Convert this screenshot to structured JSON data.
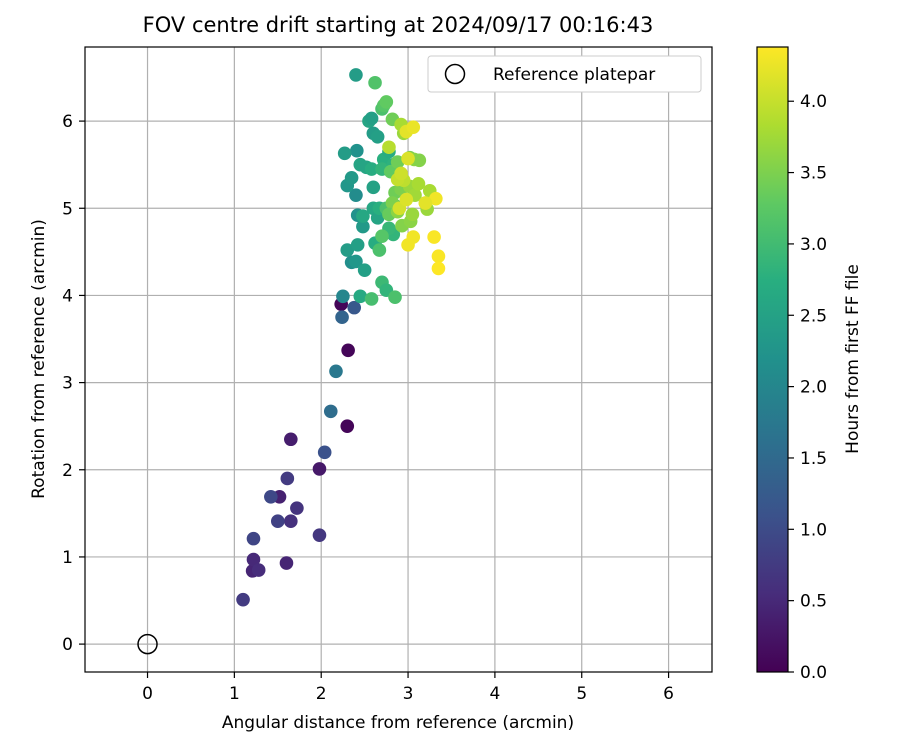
{
  "chart_data": {
    "type": "scatter",
    "title": "FOV centre drift starting at 2024/09/17 00:16:43",
    "xlabel": "Angular distance from reference (arcmin)",
    "ylabel": "Rotation from reference (arcmin)",
    "xlim": [
      -0.72,
      6.5
    ],
    "ylim": [
      -0.32,
      6.85
    ],
    "xticks": [
      0,
      1,
      2,
      3,
      4,
      5,
      6
    ],
    "yticks": [
      0,
      1,
      2,
      3,
      4,
      5,
      6
    ],
    "grid": true,
    "legend": {
      "placement": "top-right",
      "entries": [
        "Reference platepar"
      ]
    },
    "reference": {
      "x": 0,
      "y": 0,
      "label": "Reference platepar"
    },
    "colorbar": {
      "label": "Hours from first FF file",
      "colormap": "viridis",
      "range": [
        0.0,
        4.38
      ],
      "ticks": [
        "0.0",
        "0.5",
        "1.0",
        "1.5",
        "2.0",
        "2.5",
        "3.0",
        "3.5",
        "4.0"
      ],
      "tick_values": [
        0.0,
        0.5,
        1.0,
        1.5,
        2.0,
        2.5,
        3.0,
        3.5,
        4.0
      ]
    },
    "points": [
      {
        "x": 2.23,
        "y": 3.9,
        "t": 0.05
      },
      {
        "x": 2.31,
        "y": 3.37,
        "t": 0.05
      },
      {
        "x": 2.3,
        "y": 2.5,
        "t": 0.05
      },
      {
        "x": 1.65,
        "y": 2.35,
        "t": 0.35
      },
      {
        "x": 1.98,
        "y": 2.01,
        "t": 0.3
      },
      {
        "x": 1.52,
        "y": 1.69,
        "t": 0.4
      },
      {
        "x": 1.6,
        "y": 0.93,
        "t": 0.45
      },
      {
        "x": 1.21,
        "y": 0.84,
        "t": 0.45
      },
      {
        "x": 1.22,
        "y": 0.97,
        "t": 0.5
      },
      {
        "x": 1.28,
        "y": 0.85,
        "t": 0.55
      },
      {
        "x": 1.65,
        "y": 1.41,
        "t": 0.6
      },
      {
        "x": 1.72,
        "y": 1.56,
        "t": 0.65
      },
      {
        "x": 1.98,
        "y": 1.25,
        "t": 0.7
      },
      {
        "x": 1.61,
        "y": 1.9,
        "t": 0.75
      },
      {
        "x": 1.1,
        "y": 0.51,
        "t": 0.75
      },
      {
        "x": 1.5,
        "y": 1.41,
        "t": 0.85
      },
      {
        "x": 1.22,
        "y": 1.21,
        "t": 0.9
      },
      {
        "x": 1.42,
        "y": 1.69,
        "t": 0.95
      },
      {
        "x": 2.04,
        "y": 2.2,
        "t": 1.1
      },
      {
        "x": 2.38,
        "y": 3.86,
        "t": 1.2
      },
      {
        "x": 2.24,
        "y": 3.75,
        "t": 1.4
      },
      {
        "x": 2.11,
        "y": 2.67,
        "t": 1.55
      },
      {
        "x": 2.17,
        "y": 3.13,
        "t": 1.75
      },
      {
        "x": 2.25,
        "y": 3.99,
        "t": 2.0
      },
      {
        "x": 2.4,
        "y": 5.15,
        "t": 2.1
      },
      {
        "x": 2.41,
        "y": 5.66,
        "t": 2.2
      },
      {
        "x": 2.4,
        "y": 6.53,
        "t": 2.4
      },
      {
        "x": 2.42,
        "y": 4.92,
        "t": 2.2
      },
      {
        "x": 2.35,
        "y": 4.38,
        "t": 2.15
      },
      {
        "x": 2.4,
        "y": 4.39,
        "t": 2.3
      },
      {
        "x": 2.3,
        "y": 5.26,
        "t": 2.3
      },
      {
        "x": 2.35,
        "y": 5.35,
        "t": 2.35
      },
      {
        "x": 2.27,
        "y": 5.63,
        "t": 2.4
      },
      {
        "x": 2.3,
        "y": 4.52,
        "t": 2.4
      },
      {
        "x": 2.42,
        "y": 4.58,
        "t": 2.45
      },
      {
        "x": 2.48,
        "y": 4.79,
        "t": 2.35
      },
      {
        "x": 2.5,
        "y": 4.29,
        "t": 2.45
      },
      {
        "x": 2.45,
        "y": 5.5,
        "t": 2.55
      },
      {
        "x": 2.52,
        "y": 5.47,
        "t": 2.55
      },
      {
        "x": 2.55,
        "y": 6.0,
        "t": 2.55
      },
      {
        "x": 2.58,
        "y": 6.03,
        "t": 2.45
      },
      {
        "x": 2.6,
        "y": 5.86,
        "t": 2.4
      },
      {
        "x": 2.65,
        "y": 5.82,
        "t": 2.45
      },
      {
        "x": 2.6,
        "y": 5.24,
        "t": 2.5
      },
      {
        "x": 2.6,
        "y": 5.0,
        "t": 2.6
      },
      {
        "x": 2.65,
        "y": 4.89,
        "t": 2.55
      },
      {
        "x": 2.48,
        "y": 4.91,
        "t": 2.6
      },
      {
        "x": 2.62,
        "y": 4.6,
        "t": 2.7
      },
      {
        "x": 2.45,
        "y": 3.99,
        "t": 2.65
      },
      {
        "x": 2.58,
        "y": 5.45,
        "t": 2.7
      },
      {
        "x": 2.67,
        "y": 5.0,
        "t": 2.75
      },
      {
        "x": 2.72,
        "y": 5.56,
        "t": 2.75
      },
      {
        "x": 2.7,
        "y": 5.45,
        "t": 2.85
      },
      {
        "x": 2.78,
        "y": 5.65,
        "t": 2.7
      },
      {
        "x": 2.83,
        "y": 5.5,
        "t": 2.8
      },
      {
        "x": 2.83,
        "y": 4.7,
        "t": 2.85
      },
      {
        "x": 2.78,
        "y": 4.77,
        "t": 2.9
      },
      {
        "x": 2.7,
        "y": 4.15,
        "t": 2.95
      },
      {
        "x": 2.75,
        "y": 4.06,
        "t": 2.85
      },
      {
        "x": 2.85,
        "y": 5.03,
        "t": 2.9
      },
      {
        "x": 2.58,
        "y": 3.96,
        "t": 3.05
      },
      {
        "x": 2.85,
        "y": 3.98,
        "t": 3.1
      },
      {
        "x": 2.67,
        "y": 4.52,
        "t": 3.1
      },
      {
        "x": 2.7,
        "y": 4.68,
        "t": 3.2
      },
      {
        "x": 2.75,
        "y": 5.0,
        "t": 3.1
      },
      {
        "x": 2.62,
        "y": 6.44,
        "t": 3.15
      },
      {
        "x": 2.7,
        "y": 6.14,
        "t": 3.1
      },
      {
        "x": 2.72,
        "y": 6.18,
        "t": 3.2
      },
      {
        "x": 2.75,
        "y": 6.22,
        "t": 3.3
      },
      {
        "x": 2.82,
        "y": 6.02,
        "t": 3.4
      },
      {
        "x": 2.8,
        "y": 5.42,
        "t": 3.3
      },
      {
        "x": 2.88,
        "y": 5.53,
        "t": 3.4
      },
      {
        "x": 2.85,
        "y": 5.18,
        "t": 3.4
      },
      {
        "x": 2.82,
        "y": 5.06,
        "t": 3.5
      },
      {
        "x": 2.92,
        "y": 5.22,
        "t": 3.5
      },
      {
        "x": 2.78,
        "y": 4.93,
        "t": 3.35
      },
      {
        "x": 2.88,
        "y": 4.96,
        "t": 3.6
      },
      {
        "x": 2.93,
        "y": 4.8,
        "t": 3.55
      },
      {
        "x": 3.03,
        "y": 4.85,
        "t": 3.6
      },
      {
        "x": 3.05,
        "y": 4.93,
        "t": 3.7
      },
      {
        "x": 3.02,
        "y": 5.58,
        "t": 3.5
      },
      {
        "x": 3.07,
        "y": 5.56,
        "t": 3.6
      },
      {
        "x": 3.13,
        "y": 5.55,
        "t": 3.55
      },
      {
        "x": 3.02,
        "y": 5.25,
        "t": 3.7
      },
      {
        "x": 3.08,
        "y": 5.15,
        "t": 3.75
      },
      {
        "x": 3.12,
        "y": 5.28,
        "t": 3.8
      },
      {
        "x": 3.22,
        "y": 4.99,
        "t": 3.7
      },
      {
        "x": 3.25,
        "y": 5.2,
        "t": 3.8
      },
      {
        "x": 3.2,
        "y": 5.06,
        "t": 3.9
      },
      {
        "x": 2.95,
        "y": 5.86,
        "t": 3.7
      },
      {
        "x": 2.92,
        "y": 5.96,
        "t": 3.8
      },
      {
        "x": 2.78,
        "y": 5.7,
        "t": 3.9
      },
      {
        "x": 2.95,
        "y": 5.32,
        "t": 3.95
      },
      {
        "x": 2.88,
        "y": 5.33,
        "t": 4.0
      },
      {
        "x": 2.92,
        "y": 5.4,
        "t": 4.05
      },
      {
        "x": 2.9,
        "y": 5.0,
        "t": 4.1
      },
      {
        "x": 2.98,
        "y": 5.1,
        "t": 4.15
      },
      {
        "x": 3.0,
        "y": 5.57,
        "t": 4.15
      },
      {
        "x": 2.98,
        "y": 5.88,
        "t": 4.2
      },
      {
        "x": 3.06,
        "y": 5.93,
        "t": 4.25
      },
      {
        "x": 3.0,
        "y": 4.58,
        "t": 4.3
      },
      {
        "x": 3.06,
        "y": 4.67,
        "t": 4.3
      },
      {
        "x": 3.32,
        "y": 5.11,
        "t": 4.3
      },
      {
        "x": 3.3,
        "y": 4.67,
        "t": 4.35
      },
      {
        "x": 3.35,
        "y": 4.45,
        "t": 4.35
      },
      {
        "x": 3.35,
        "y": 4.31,
        "t": 4.38
      },
      {
        "x": 3.2,
        "y": 5.06,
        "t": 4.2
      }
    ]
  }
}
